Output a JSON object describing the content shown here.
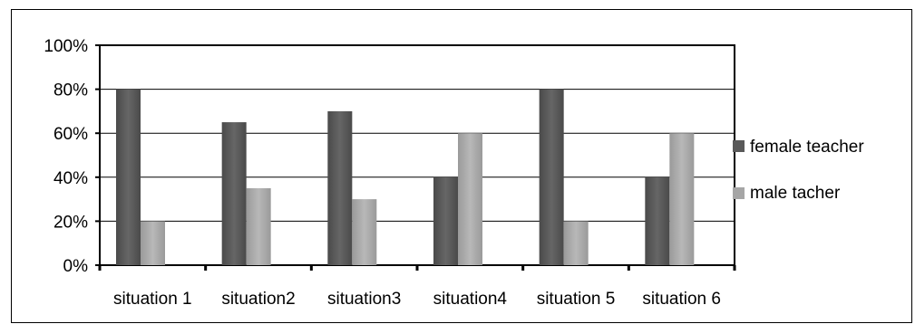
{
  "chart_data": {
    "type": "bar",
    "title": "",
    "xlabel": "",
    "ylabel": "",
    "ylim": [
      0,
      100
    ],
    "y_ticks": [
      "0%",
      "20%",
      "40%",
      "60%",
      "80%",
      "100%"
    ],
    "categories": [
      "situation 1",
      "situation2",
      "situation3",
      "situation4",
      "situation 5",
      "situation 6"
    ],
    "series": [
      {
        "name": "female teacher",
        "values": [
          80,
          65,
          70,
          40,
          80,
          40
        ],
        "color": "#595959"
      },
      {
        "name": "male tacher",
        "values": [
          20,
          35,
          30,
          60,
          20,
          60
        ],
        "color": "#a6a6a6"
      }
    ],
    "grid": true,
    "legend_position": "right"
  }
}
